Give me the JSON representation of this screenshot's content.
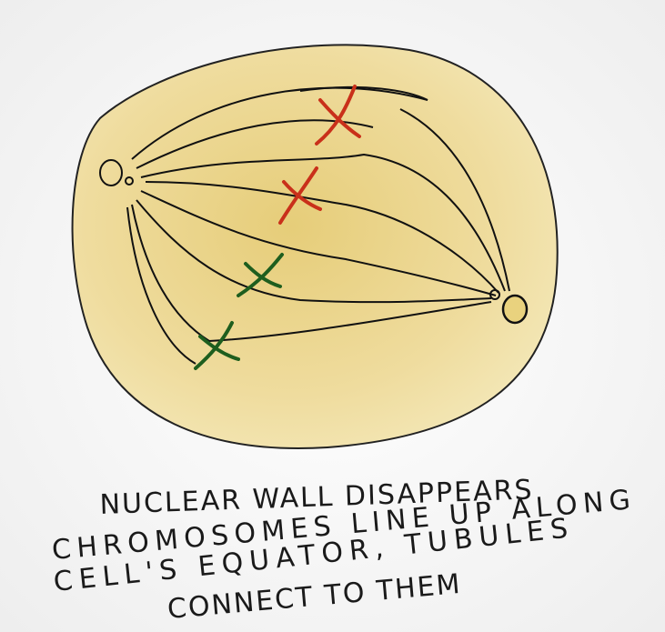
{
  "caption": {
    "lines": [
      "NUCLEAR WALL DISAPPEARS",
      "CHROMOSOMES LINE UP ALONG",
      "CELL'S EQUATOR, TUBULES",
      "CONNECT TO THEM"
    ]
  }
}
